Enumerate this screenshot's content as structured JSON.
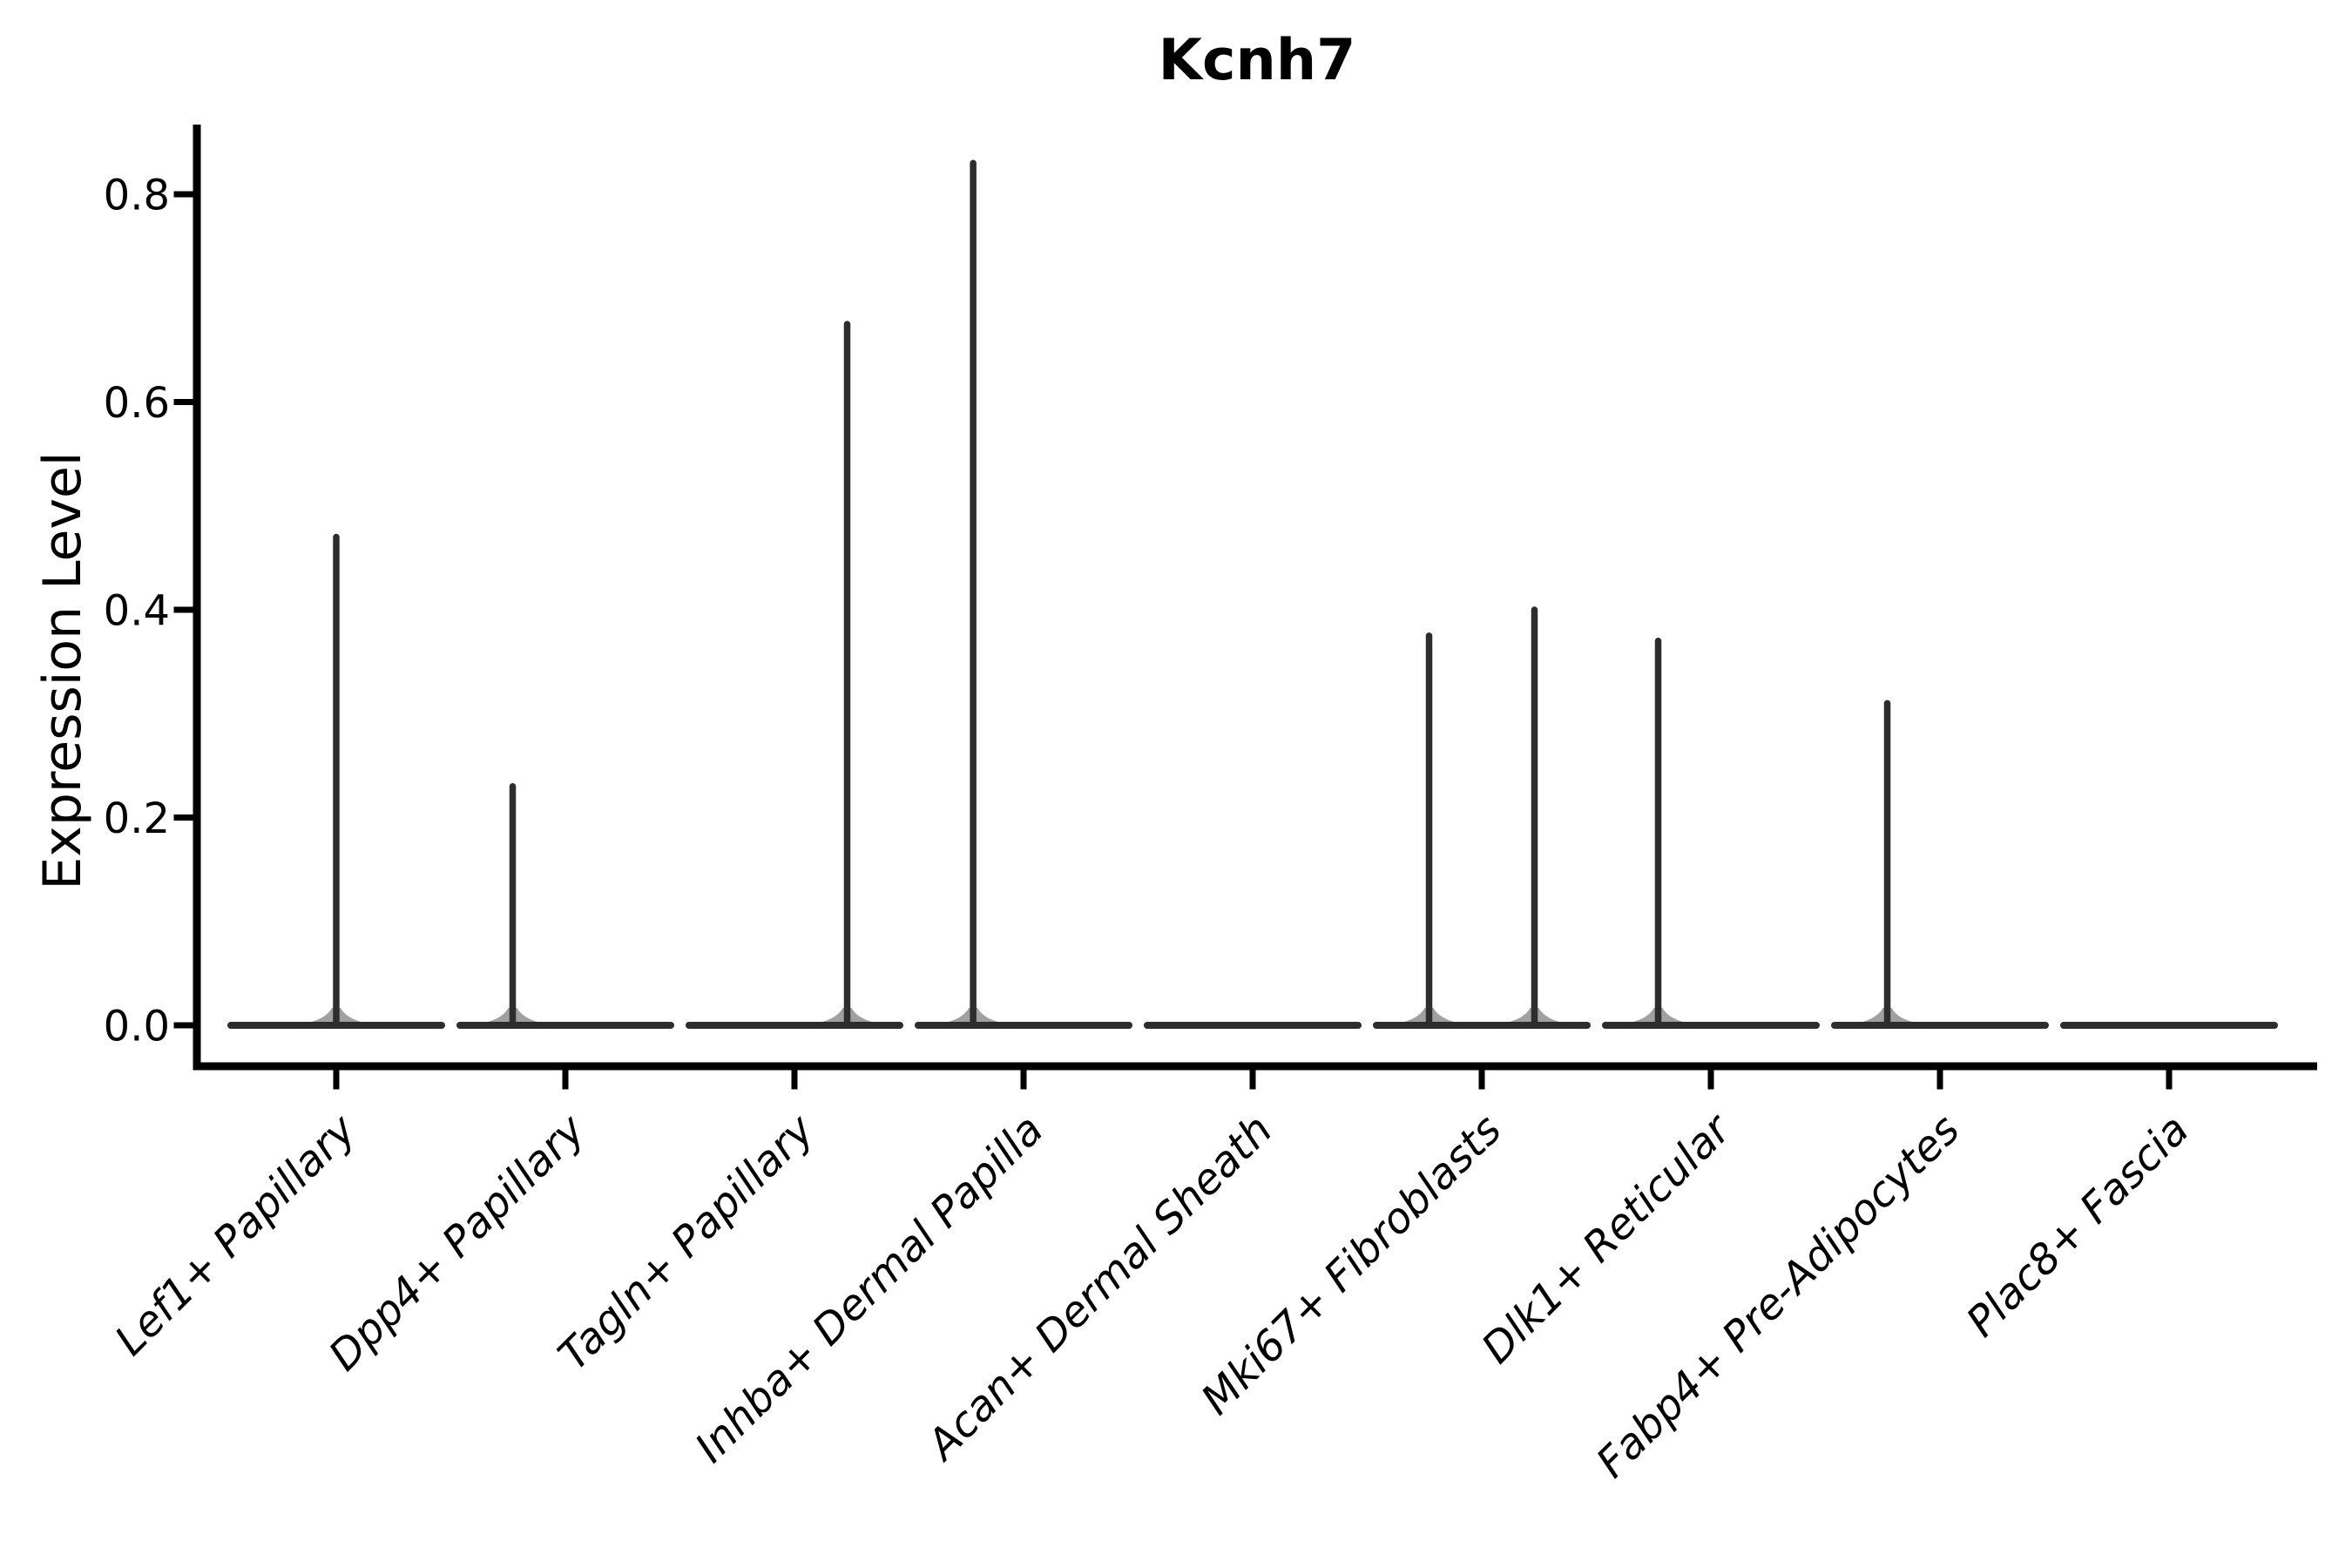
{
  "chart_data": {
    "type": "violin",
    "title": "Kcnh7",
    "xlabel": "",
    "ylabel": "Expression Level",
    "ylim": [
      -0.04,
      0.87
    ],
    "yticks": [
      0,
      0.2,
      0.4,
      0.6,
      0.8
    ],
    "ytick_labels": [
      "0.0",
      "0.2",
      "0.4",
      "0.6",
      "0.8"
    ],
    "grid": false,
    "legend": "none",
    "x_tick_rotation_deg": 45,
    "categories": [
      "Lef1+ Papillary",
      "Dpp4+ Papillary",
      "Tagln+ Papillary",
      "Inhba+ Dermal Papilla",
      "Acan+ Dermal Sheath",
      "Mki67+ Fibroblasts",
      "Dlk1+ Reticular",
      "Fabp4+ Pre-Adipocytes",
      "Plac8+ Fascia"
    ],
    "series": [
      {
        "category": "Lef1+ Papillary",
        "baseline_value": 0.0,
        "spikes": [
          {
            "x_offset_frac": 0.0,
            "max_value": 0.47
          }
        ]
      },
      {
        "category": "Dpp4+ Papillary",
        "baseline_value": 0.0,
        "spikes": [
          {
            "x_offset_frac": -0.23,
            "max_value": 0.23
          }
        ]
      },
      {
        "category": "Tagln+ Papillary",
        "baseline_value": 0.0,
        "spikes": [
          {
            "x_offset_frac": 0.23,
            "max_value": 0.675
          }
        ]
      },
      {
        "category": "Inhba+ Dermal Papilla",
        "baseline_value": 0.0,
        "spikes": [
          {
            "x_offset_frac": -0.22,
            "max_value": 0.83
          }
        ]
      },
      {
        "category": "Acan+ Dermal Sheath",
        "baseline_value": 0.0,
        "spikes": []
      },
      {
        "category": "Mki67+ Fibroblasts",
        "baseline_value": 0.0,
        "spikes": [
          {
            "x_offset_frac": -0.23,
            "max_value": 0.375
          },
          {
            "x_offset_frac": 0.23,
            "max_value": 0.4
          }
        ]
      },
      {
        "category": "Dlk1+ Reticular",
        "baseline_value": 0.0,
        "spikes": [
          {
            "x_offset_frac": -0.23,
            "max_value": 0.37
          }
        ]
      },
      {
        "category": "Fabp4+ Pre-Adipocytes",
        "baseline_value": 0.0,
        "spikes": [
          {
            "x_offset_frac": -0.23,
            "max_value": 0.31
          }
        ]
      },
      {
        "category": "Plac8+ Fascia",
        "baseline_value": 0.0,
        "spikes": []
      }
    ],
    "colors": {
      "violin": "#2d2d2d",
      "axis": "#000000",
      "text": "#000000",
      "background": "#ffffff"
    }
  }
}
